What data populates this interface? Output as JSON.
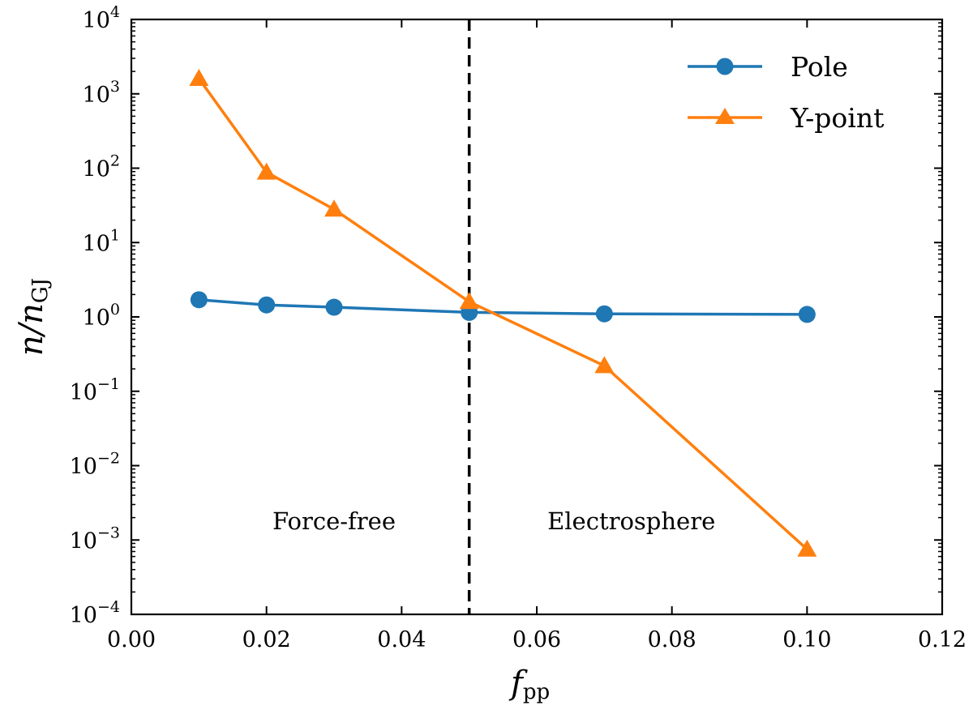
{
  "chart_data": {
    "type": "line",
    "title": "",
    "xlabel": "f",
    "xlabel_sub": "pp",
    "ylabel": "n/n",
    "ylabel_sub": "GJ",
    "xlim": [
      0.0,
      0.12
    ],
    "ylim": [
      0.0001,
      10000
    ],
    "yscale": "log",
    "x_ticks": [
      "0.00",
      "0.02",
      "0.04",
      "0.06",
      "0.08",
      "0.10",
      "0.12"
    ],
    "y_tick_base": "10",
    "y_tick_exponents": [
      "−4",
      "−3",
      "−2",
      "−1",
      "0",
      "1",
      "2",
      "3",
      "4"
    ],
    "series": [
      {
        "name": "Pole",
        "color": "#1f77b4",
        "marker": "circle",
        "x": [
          0.01,
          0.02,
          0.03,
          0.05,
          0.07,
          0.1
        ],
        "y": [
          1.7,
          1.45,
          1.35,
          1.15,
          1.1,
          1.08
        ]
      },
      {
        "name": "Y-point",
        "color": "#ff7f0e",
        "marker": "triangle",
        "x": [
          0.01,
          0.02,
          0.03,
          0.05,
          0.07,
          0.1
        ],
        "y": [
          1600,
          88,
          28,
          1.6,
          0.22,
          0.00075
        ]
      }
    ],
    "vline": {
      "x": 0.05,
      "style": "dashed",
      "color": "#000000"
    },
    "annotations": [
      {
        "text": "Force-free",
        "x": 0.03,
        "y": 0.0018
      },
      {
        "text": "Electrosphere",
        "x": 0.074,
        "y": 0.0018
      }
    ],
    "legend": {
      "position": "top-right",
      "entries": [
        "Pole",
        "Y-point"
      ]
    }
  }
}
